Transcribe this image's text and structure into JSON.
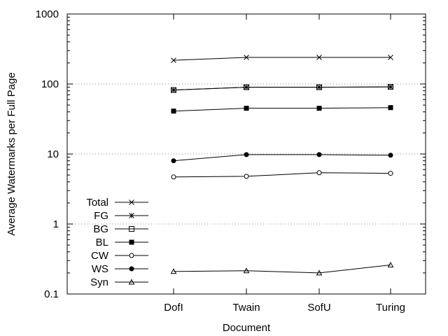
{
  "chart_data": {
    "type": "line",
    "title": "",
    "xlabel": "Document",
    "ylabel": "Average Watermarks per Full Page",
    "y_scale": "log",
    "ylim": [
      0.1,
      1000
    ],
    "y_ticks": [
      0.1,
      1,
      10,
      100,
      1000
    ],
    "y_tick_labels": [
      "0.1",
      "1",
      "10",
      "100",
      "1000"
    ],
    "grid": "horizontal dotted at 1, 10, 100",
    "legend_position": "bottom-left",
    "categories": [
      "DofI",
      "Twain",
      "SofU",
      "Turing"
    ],
    "series": [
      {
        "name": "Total",
        "marker": "x",
        "values": [
          218,
          240,
          240,
          240
        ]
      },
      {
        "name": "FG",
        "marker": "star",
        "values": [
          82,
          90,
          90,
          91
        ]
      },
      {
        "name": "BG",
        "marker": "open-square",
        "values": [
          82,
          90,
          90,
          91
        ]
      },
      {
        "name": "BL",
        "marker": "filled-square",
        "values": [
          41,
          45,
          45,
          46
        ]
      },
      {
        "name": "CW",
        "marker": "open-circle",
        "values": [
          4.7,
          4.8,
          5.4,
          5.3
        ]
      },
      {
        "name": "WS",
        "marker": "filled-circle",
        "values": [
          8.0,
          9.8,
          9.8,
          9.6
        ]
      },
      {
        "name": "Syn",
        "marker": "open-triangle",
        "values": [
          0.21,
          0.215,
          0.2,
          0.26
        ]
      }
    ]
  }
}
